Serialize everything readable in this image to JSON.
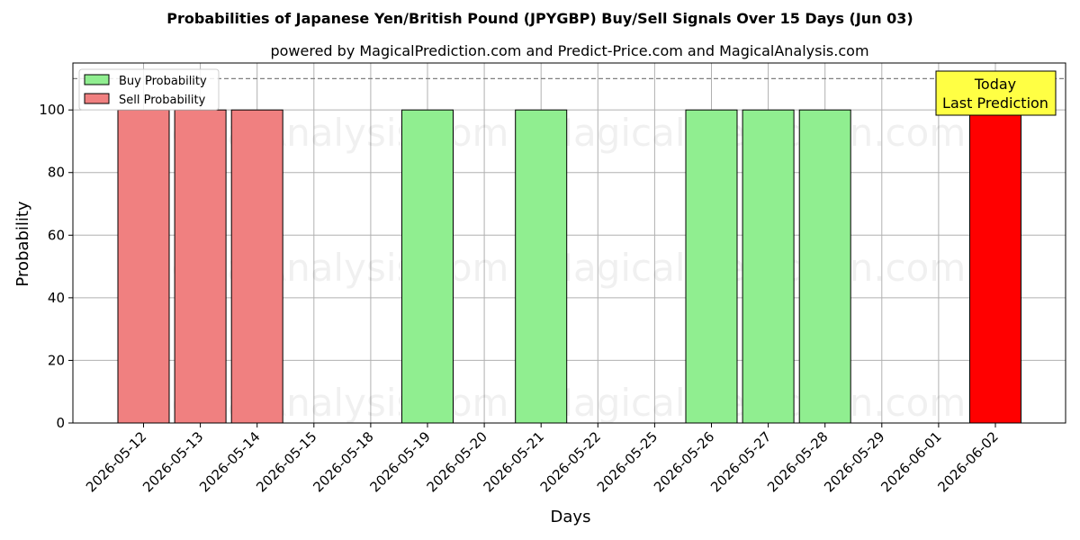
{
  "chart_data": {
    "type": "bar",
    "title": "Probabilities of Japanese Yen/British Pound (JPYGBP) Buy/Sell Signals Over 15 Days (Jun 03)",
    "subtitle": "powered by MagicalPrediction.com and Predict-Price.com and MagicalAnalysis.com",
    "xlabel": "Days",
    "ylabel": "Probability",
    "ylim": [
      0,
      115
    ],
    "yticks": [
      0,
      20,
      40,
      60,
      80,
      100
    ],
    "reference_line": 110,
    "grid": true,
    "legend_position": "top-left",
    "categories": [
      "2026-05-12",
      "2026-05-13",
      "2026-05-14",
      "2026-05-15",
      "2026-05-18",
      "2026-05-19",
      "2026-05-20",
      "2026-05-21",
      "2026-05-22",
      "2026-05-25",
      "2026-05-26",
      "2026-05-27",
      "2026-05-28",
      "2026-05-29",
      "2026-06-01",
      "2026-06-02"
    ],
    "series": [
      {
        "name": "Buy Probability",
        "color": "#90ee90",
        "values": [
          0,
          0,
          0,
          0,
          0,
          100,
          0,
          100,
          0,
          0,
          100,
          100,
          100,
          0,
          0,
          0
        ]
      },
      {
        "name": "Sell Probability",
        "color": "#f08080",
        "values": [
          100,
          100,
          100,
          0,
          0,
          0,
          0,
          0,
          0,
          0,
          0,
          0,
          0,
          0,
          0,
          0
        ]
      }
    ],
    "highlight": {
      "category": "2026-06-02",
      "value": 100,
      "color": "#ff0000"
    },
    "annotation": {
      "line1": "Today",
      "line2": "Last Prediction",
      "color": "#ffff44"
    },
    "watermarks": [
      "MagicalAnalysis.com",
      "MagicalPrediction.com"
    ]
  }
}
